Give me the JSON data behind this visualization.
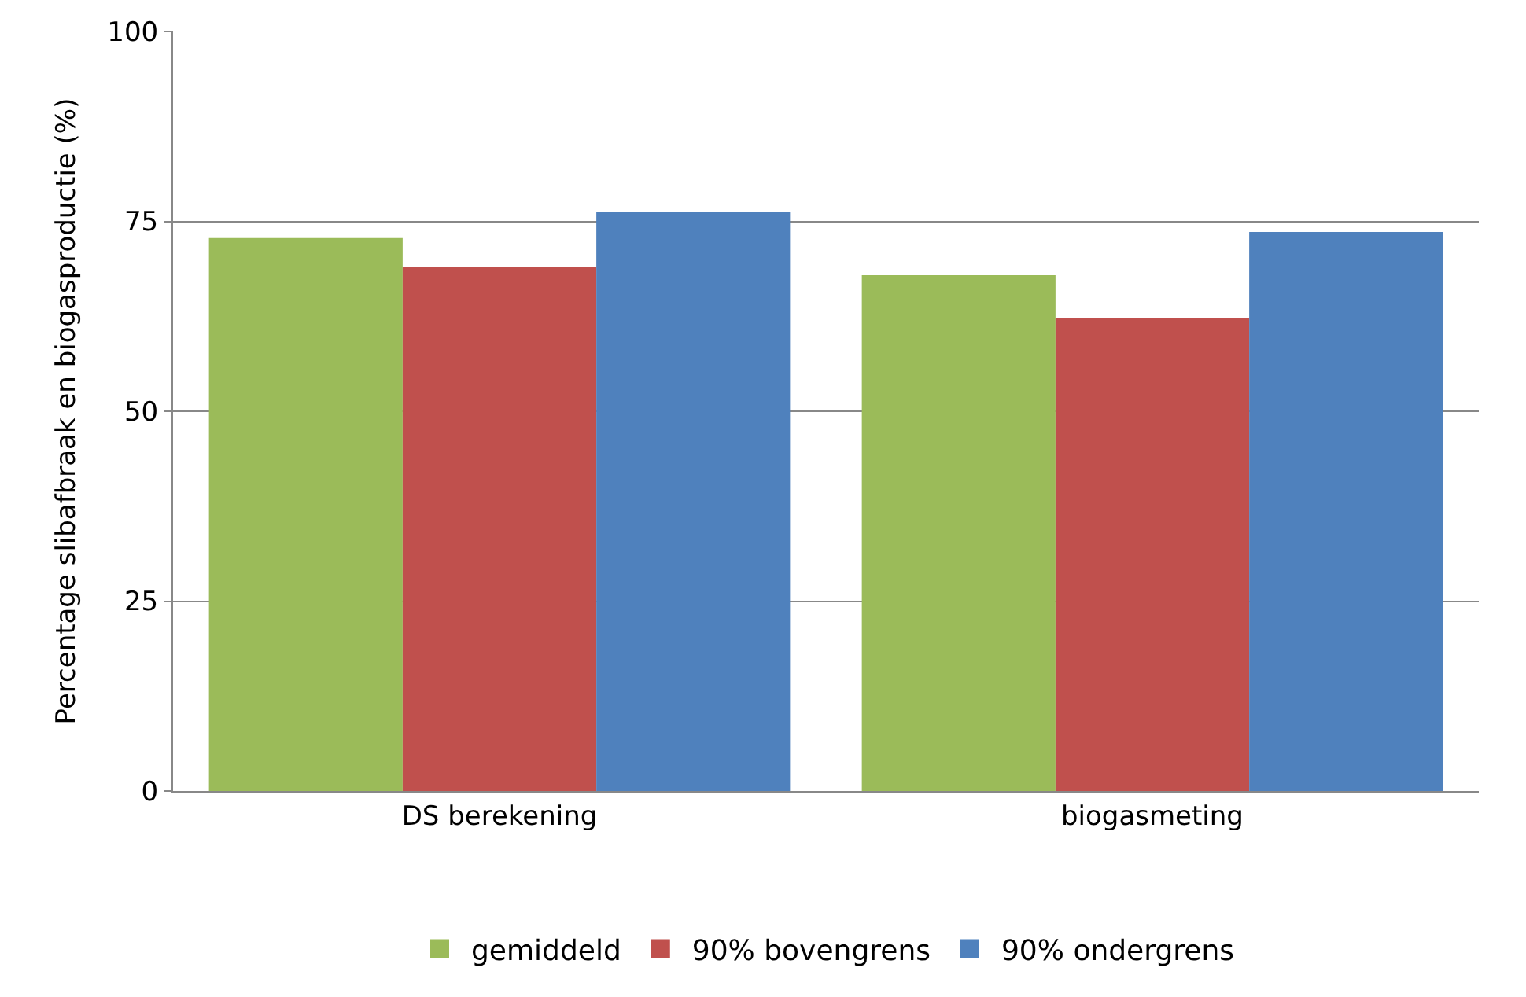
{
  "chart_data": {
    "type": "bar",
    "ylabel": "Percentage slibafbraak en biogasproductie (%)",
    "categories": [
      "DS berekening",
      "biogasmeting"
    ],
    "series": [
      {
        "name": "gemiddeld",
        "color": "#9bbb59",
        "values": [
          72.8,
          67.9
        ]
      },
      {
        "name": "90% bovengrens",
        "color": "#c0504d",
        "values": [
          69.0,
          62.3
        ]
      },
      {
        "name": "90% ondergrens",
        "color": "#4f81bd",
        "values": [
          76.2,
          73.6
        ]
      }
    ],
    "ylim": [
      0,
      100
    ],
    "yticks": [
      0,
      25,
      50,
      75,
      100
    ],
    "grid": "y",
    "legend": "bottom"
  }
}
